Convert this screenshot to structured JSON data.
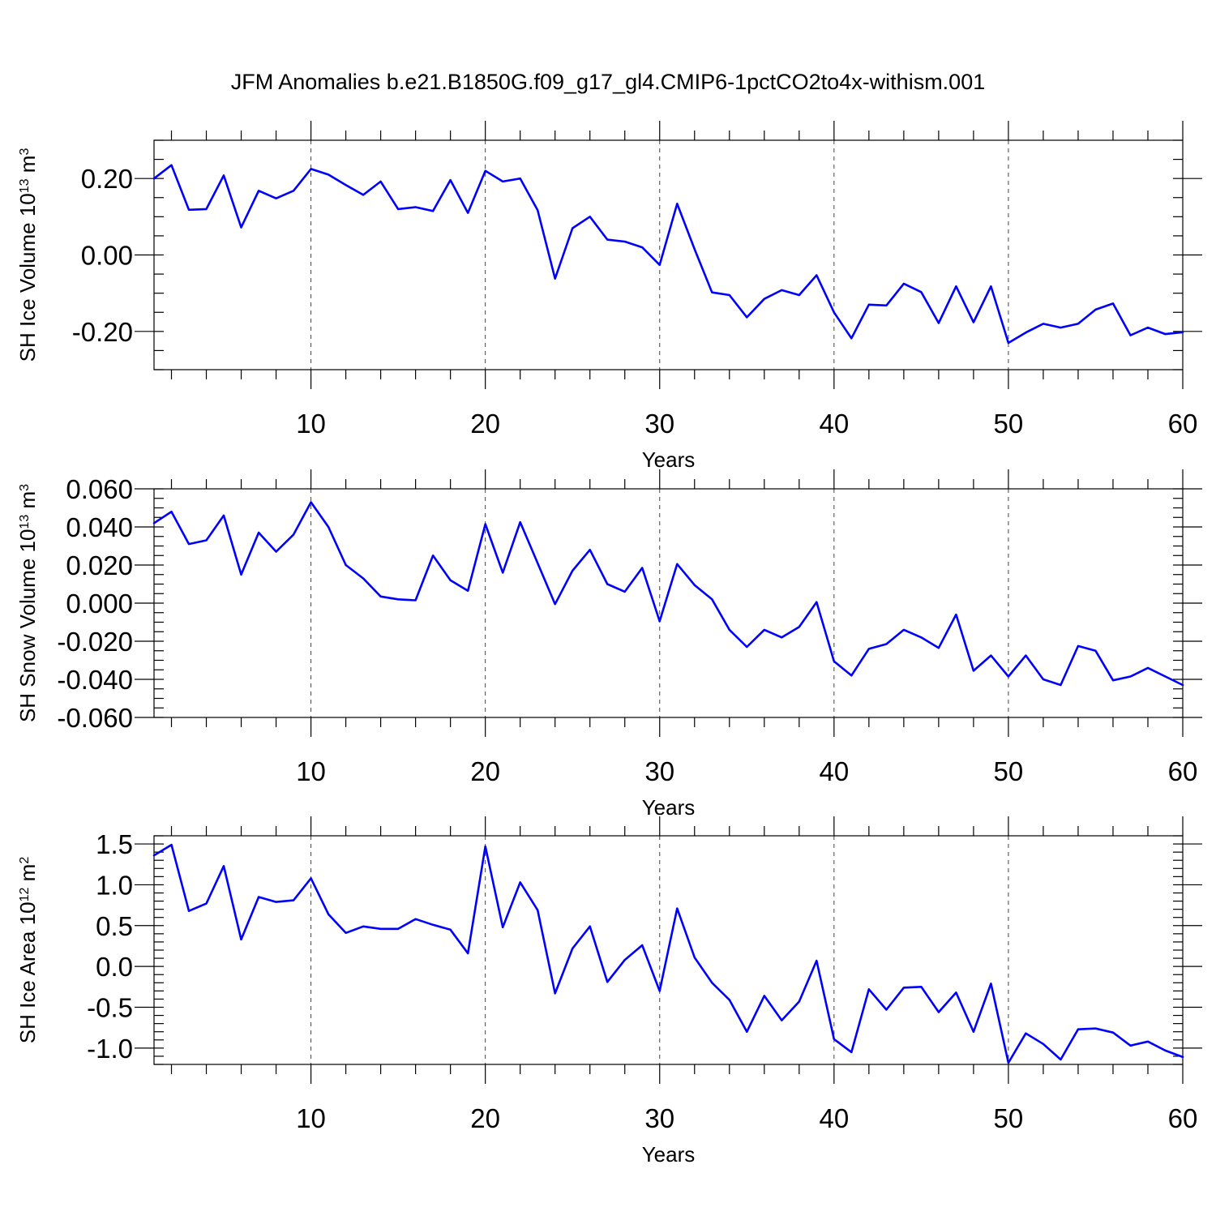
{
  "title": "JFM Anomalies b.e21.B1850G.f09_g17_gl4.CMIP6-1pctCO2to4x-withism.001",
  "colors": {
    "line": "#0000ff",
    "axis": "#000000",
    "grid": "#444444"
  },
  "chart_data": [
    {
      "type": "line",
      "xlabel": "Years",
      "ylabel": "SH Ice Volume 10",
      "ylabel_exp": "13",
      "ylabel_unit": " m",
      "ylabel_unit_exp": "3",
      "xlim": [
        1,
        60
      ],
      "ylim": [
        -0.3,
        0.3
      ],
      "xticks": [
        10,
        20,
        30,
        40,
        50,
        60
      ],
      "yticks": [
        0.2,
        0.0,
        -0.2
      ],
      "ytick_labels": [
        "0.20",
        "0.00",
        "-0.20"
      ],
      "yminor_step": 0.05,
      "grid": "x-major dashed",
      "x": [
        1,
        2,
        3,
        4,
        5,
        6,
        7,
        8,
        9,
        10,
        11,
        12,
        13,
        14,
        15,
        16,
        17,
        18,
        19,
        20,
        21,
        22,
        23,
        24,
        25,
        26,
        27,
        28,
        29,
        30,
        31,
        32,
        33,
        34,
        35,
        36,
        37,
        38,
        39,
        40,
        41,
        42,
        43,
        44,
        45,
        46,
        47,
        48,
        49,
        50,
        51,
        52,
        53,
        54,
        55,
        56,
        57,
        58,
        59,
        60
      ],
      "y": [
        0.2,
        0.235,
        0.118,
        0.12,
        0.208,
        0.072,
        0.168,
        0.148,
        0.168,
        0.225,
        0.21,
        0.183,
        0.157,
        0.192,
        0.12,
        0.125,
        0.115,
        0.196,
        0.11,
        0.22,
        0.192,
        0.2,
        0.117,
        -0.062,
        0.07,
        0.1,
        0.04,
        0.035,
        0.02,
        -0.026,
        0.134,
        0.015,
        -0.098,
        -0.105,
        -0.163,
        -0.115,
        -0.092,
        -0.105,
        -0.053,
        -0.15,
        -0.218,
        -0.13,
        -0.132,
        -0.075,
        -0.097,
        -0.178,
        -0.082,
        -0.176,
        -0.082,
        -0.23,
        -0.203,
        -0.18,
        -0.19,
        -0.18,
        -0.143,
        -0.127,
        -0.21,
        -0.19,
        -0.207,
        -0.202
      ]
    },
    {
      "type": "line",
      "xlabel": "Years",
      "ylabel": "SH Snow Volume 10",
      "ylabel_exp": "13",
      "ylabel_unit": " m",
      "ylabel_unit_exp": "3",
      "xlim": [
        1,
        60
      ],
      "ylim": [
        -0.06,
        0.06
      ],
      "xticks": [
        10,
        20,
        30,
        40,
        50,
        60
      ],
      "yticks": [
        0.06,
        0.04,
        0.02,
        0.0,
        -0.02,
        -0.04,
        -0.06
      ],
      "ytick_labels": [
        "0.060",
        "0.040",
        "0.020",
        "0.000",
        "-0.020",
        "-0.040",
        "-0.060"
      ],
      "yminor_step": 0.005,
      "grid": "x-major dashed",
      "x": [
        1,
        2,
        3,
        4,
        5,
        6,
        7,
        8,
        9,
        10,
        11,
        12,
        13,
        14,
        15,
        16,
        17,
        18,
        19,
        20,
        21,
        22,
        23,
        24,
        25,
        26,
        27,
        28,
        29,
        30,
        31,
        32,
        33,
        34,
        35,
        36,
        37,
        38,
        39,
        40,
        41,
        42,
        43,
        44,
        45,
        46,
        47,
        48,
        49,
        50,
        51,
        52,
        53,
        54,
        55,
        56,
        57,
        58,
        59,
        60
      ],
      "y": [
        0.042,
        0.048,
        0.031,
        0.033,
        0.046,
        0.015,
        0.037,
        0.027,
        0.036,
        0.053,
        0.04,
        0.02,
        0.013,
        0.0035,
        0.002,
        0.0015,
        0.025,
        0.012,
        0.0065,
        0.0415,
        0.016,
        0.0425,
        0.021,
        -0.0005,
        0.017,
        0.028,
        0.01,
        0.006,
        0.0185,
        -0.0095,
        0.0205,
        0.0095,
        0.002,
        -0.014,
        -0.023,
        -0.014,
        -0.018,
        -0.0125,
        0.0005,
        -0.0305,
        -0.038,
        -0.024,
        -0.0215,
        -0.014,
        -0.018,
        -0.0235,
        -0.006,
        -0.0355,
        -0.0275,
        -0.0385,
        -0.0275,
        -0.04,
        -0.043,
        -0.0225,
        -0.025,
        -0.0405,
        -0.0385,
        -0.034,
        -0.0385,
        -0.043
      ]
    },
    {
      "type": "line",
      "xlabel": "Years",
      "ylabel": "SH Ice Area 10",
      "ylabel_exp": "12",
      "ylabel_unit": " m",
      "ylabel_unit_exp": "2",
      "xlim": [
        1,
        60
      ],
      "ylim": [
        -1.2,
        1.6
      ],
      "xticks": [
        10,
        20,
        30,
        40,
        50,
        60
      ],
      "yticks": [
        1.5,
        1.0,
        0.5,
        0.0,
        -0.5,
        -1.0
      ],
      "ytick_labels": [
        "1.5",
        "1.0",
        "0.5",
        "0.0",
        "-0.5",
        "-1.0"
      ],
      "yminor_step": 0.1,
      "grid": "x-major dashed",
      "x": [
        1,
        2,
        3,
        4,
        5,
        6,
        7,
        8,
        9,
        10,
        11,
        12,
        13,
        14,
        15,
        16,
        17,
        18,
        19,
        20,
        21,
        22,
        23,
        24,
        25,
        26,
        27,
        28,
        29,
        30,
        31,
        32,
        33,
        34,
        35,
        36,
        37,
        38,
        39,
        40,
        41,
        42,
        43,
        44,
        45,
        46,
        47,
        48,
        49,
        50,
        51,
        52,
        53,
        54,
        55,
        56,
        57,
        58,
        59,
        60
      ],
      "y": [
        1.36,
        1.49,
        0.68,
        0.77,
        1.23,
        0.33,
        0.85,
        0.79,
        0.81,
        1.08,
        0.64,
        0.41,
        0.49,
        0.46,
        0.46,
        0.58,
        0.51,
        0.45,
        0.16,
        1.47,
        0.48,
        1.03,
        0.69,
        -0.33,
        0.22,
        0.49,
        -0.19,
        0.08,
        0.26,
        -0.3,
        0.71,
        0.11,
        -0.2,
        -0.41,
        -0.8,
        -0.36,
        -0.66,
        -0.43,
        0.07,
        -0.89,
        -1.05,
        -0.28,
        -0.53,
        -0.26,
        -0.25,
        -0.56,
        -0.32,
        -0.8,
        -0.21,
        -1.18,
        -0.82,
        -0.95,
        -1.14,
        -0.77,
        -0.76,
        -0.81,
        -0.97,
        -0.92,
        -1.03,
        -1.11
      ]
    }
  ]
}
